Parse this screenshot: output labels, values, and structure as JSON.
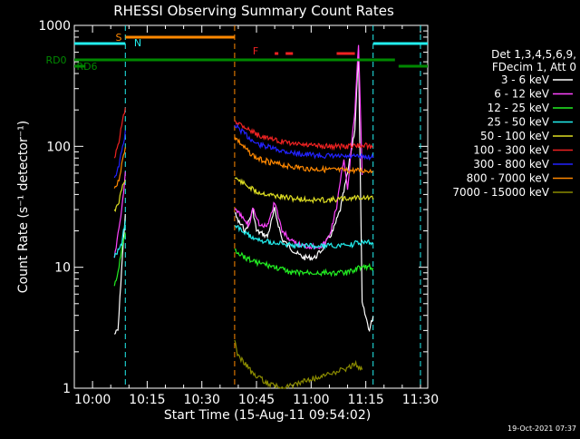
{
  "chart_data": {
    "type": "line",
    "title": "RHESSI Observing Summary Count Rates",
    "xlabel": "Start Time (15-Aug-11 09:54:02)",
    "ylabel": "Count Rate (s⁻¹ detector⁻¹)",
    "yscale": "log",
    "xlim": [
      "09:55",
      "11:32"
    ],
    "ylim": [
      1,
      1000
    ],
    "x_ticks": [
      "10:00",
      "10:15",
      "10:30",
      "10:45",
      "11:00",
      "11:15",
      "11:30"
    ],
    "y_ticks": [
      "1",
      "10",
      "100",
      "1000"
    ],
    "timestamp": "19-Oct-2021 07:37",
    "legend": {
      "position": "right",
      "header": [
        "Det 1,3,4,5,6,9,",
        "FDecim 1, Att 0"
      ],
      "entries": [
        {
          "label": "3 - 6 keV",
          "color": "#ffffff"
        },
        {
          "label": "6 - 12 keV",
          "color": "#ff44ff"
        },
        {
          "label": "12 - 25 keV",
          "color": "#22ee22"
        },
        {
          "label": "25 - 50 keV",
          "color": "#22eeee"
        },
        {
          "label": "50 - 100 keV",
          "color": "#dddd22"
        },
        {
          "label": "100 - 300 keV",
          "color": "#ee2222"
        },
        {
          "label": "300 - 800 keV",
          "color": "#2222ff"
        },
        {
          "label": "800 - 7000 keV",
          "color": "#ff8800"
        },
        {
          "label": "7000 - 15000 keV",
          "color": "#8b8b00"
        }
      ]
    },
    "state_bars": [
      {
        "label": "S",
        "color": "#ff8800",
        "segments": [
          [
            "10:09",
            "10:39"
          ]
        ]
      },
      {
        "label": "N",
        "color": "#22eeee",
        "segments": [
          [
            "09:55",
            "10:09"
          ],
          [
            "11:17",
            "11:32"
          ]
        ]
      },
      {
        "label": "F",
        "color": "#ee2222",
        "segments": [
          [
            "10:50",
            "10:51"
          ],
          [
            "10:53",
            "10:55"
          ],
          [
            "11:07",
            "11:12"
          ]
        ]
      },
      {
        "label": "RD0",
        "color": "#008800",
        "segments": [
          [
            "09:55",
            "11:23"
          ]
        ]
      },
      {
        "label": "RD6",
        "color": "#008800",
        "segments": [
          [
            "09:55",
            "09:58"
          ],
          [
            "11:24",
            "11:32"
          ]
        ]
      }
    ],
    "vlines": [
      {
        "time": "10:09",
        "color": "#22eeee"
      },
      {
        "time": "10:39",
        "color": "#ff8800"
      },
      {
        "time": "11:17",
        "color": "#22eeee"
      },
      {
        "time": "11:30",
        "color": "#22eeee"
      }
    ],
    "series": [
      {
        "name": "3 - 6 keV",
        "color": "#ffffff",
        "points": [
          [
            "10:06",
            2.8
          ],
          [
            "10:07",
            3
          ],
          [
            "10:08",
            10
          ],
          [
            "10:09",
            28
          ],
          [
            "10:39",
            28
          ],
          [
            "10:40",
            24
          ],
          [
            "10:42",
            20
          ],
          [
            "10:44",
            30
          ],
          [
            "10:45",
            20
          ],
          [
            "10:48",
            18
          ],
          [
            "10:50",
            30
          ],
          [
            "10:52",
            17
          ],
          [
            "10:56",
            13
          ],
          [
            "10:58",
            12
          ],
          [
            "11:01",
            12
          ],
          [
            "11:03",
            14
          ],
          [
            "11:06",
            20
          ],
          [
            "11:08",
            30
          ],
          [
            "11:10",
            60
          ],
          [
            "11:12",
            140
          ],
          [
            "11:13",
            600
          ],
          [
            "11:14",
            5
          ],
          [
            "11:16",
            3
          ],
          [
            "11:17",
            4
          ]
        ]
      },
      {
        "name": "6 - 12 keV",
        "color": "#ff44ff",
        "points": [
          [
            "10:06",
            12
          ],
          [
            "10:08",
            30
          ],
          [
            "10:09",
            60
          ],
          [
            "10:39",
            30
          ],
          [
            "10:41",
            26
          ],
          [
            "10:43",
            22
          ],
          [
            "10:44",
            32
          ],
          [
            "10:46",
            22
          ],
          [
            "10:48",
            22
          ],
          [
            "10:50",
            35
          ],
          [
            "10:52",
            20
          ],
          [
            "10:55",
            16
          ],
          [
            "10:58",
            15
          ],
          [
            "11:00",
            15
          ],
          [
            "11:03",
            15
          ],
          [
            "11:05",
            18
          ],
          [
            "11:07",
            32
          ],
          [
            "11:09",
            80
          ],
          [
            "11:10",
            45
          ],
          [
            "11:12",
            200
          ],
          [
            "11:13",
            700
          ],
          [
            "11:14",
            60
          ]
        ]
      },
      {
        "name": "12 - 25 keV",
        "color": "#22ee22",
        "points": [
          [
            "10:06",
            7
          ],
          [
            "10:07",
            9
          ],
          [
            "10:08",
            14
          ],
          [
            "10:09",
            20
          ],
          [
            "10:39",
            14
          ],
          [
            "10:42",
            12
          ],
          [
            "10:45",
            11
          ],
          [
            "10:50",
            10
          ],
          [
            "10:55",
            9
          ],
          [
            "11:00",
            9
          ],
          [
            "11:05",
            9
          ],
          [
            "11:10",
            9
          ],
          [
            "11:13",
            10
          ],
          [
            "11:17",
            10
          ]
        ]
      },
      {
        "name": "25 - 50 keV",
        "color": "#22eeee",
        "points": [
          [
            "10:06",
            12
          ],
          [
            "10:08",
            16
          ],
          [
            "10:09",
            24
          ],
          [
            "10:39",
            22
          ],
          [
            "10:42",
            19
          ],
          [
            "10:45",
            17
          ],
          [
            "10:50",
            16
          ],
          [
            "10:55",
            15
          ],
          [
            "11:00",
            15
          ],
          [
            "11:05",
            15
          ],
          [
            "11:10",
            15
          ],
          [
            "11:13",
            16
          ],
          [
            "11:17",
            16
          ]
        ]
      },
      {
        "name": "50 - 100 keV",
        "color": "#dddd22",
        "points": [
          [
            "10:06",
            30
          ],
          [
            "10:07",
            32
          ],
          [
            "10:08",
            45
          ],
          [
            "10:09",
            55
          ],
          [
            "10:39",
            55
          ],
          [
            "10:42",
            48
          ],
          [
            "10:45",
            42
          ],
          [
            "10:50",
            39
          ],
          [
            "10:55",
            37
          ],
          [
            "11:00",
            36
          ],
          [
            "11:05",
            36
          ],
          [
            "11:10",
            37
          ],
          [
            "11:13",
            38
          ],
          [
            "11:17",
            37
          ]
        ]
      },
      {
        "name": "100 - 300 keV",
        "color": "#ee2222",
        "points": [
          [
            "10:06",
            80
          ],
          [
            "10:07",
            100
          ],
          [
            "10:08",
            150
          ],
          [
            "10:09",
            210
          ],
          [
            "10:39",
            165
          ],
          [
            "10:42",
            145
          ],
          [
            "10:45",
            125
          ],
          [
            "10:50",
            112
          ],
          [
            "10:55",
            105
          ],
          [
            "11:00",
            102
          ],
          [
            "11:05",
            100
          ],
          [
            "11:10",
            100
          ],
          [
            "11:13",
            102
          ],
          [
            "11:17",
            100
          ]
        ]
      },
      {
        "name": "300 - 800 keV",
        "color": "#2222ff",
        "points": [
          [
            "10:06",
            55
          ],
          [
            "10:07",
            65
          ],
          [
            "10:08",
            90
          ],
          [
            "10:09",
            130
          ],
          [
            "10:39",
            150
          ],
          [
            "10:42",
            125
          ],
          [
            "10:45",
            105
          ],
          [
            "10:50",
            95
          ],
          [
            "10:55",
            88
          ],
          [
            "11:00",
            85
          ],
          [
            "11:05",
            83
          ],
          [
            "11:10",
            82
          ],
          [
            "11:13",
            82
          ],
          [
            "11:17",
            82
          ]
        ]
      },
      {
        "name": "800 - 7000 keV",
        "color": "#ff8800",
        "points": [
          [
            "10:06",
            45
          ],
          [
            "10:07",
            50
          ],
          [
            "10:08",
            70
          ],
          [
            "10:09",
            100
          ],
          [
            "10:39",
            120
          ],
          [
            "10:42",
            95
          ],
          [
            "10:45",
            80
          ],
          [
            "10:50",
            72
          ],
          [
            "10:55",
            68
          ],
          [
            "11:00",
            65
          ],
          [
            "11:05",
            64
          ],
          [
            "11:10",
            63
          ],
          [
            "11:13",
            63
          ],
          [
            "11:17",
            63
          ]
        ]
      },
      {
        "name": "7000 - 15000 keV",
        "color": "#8b8b00",
        "points": [
          [
            "10:39",
            2.5
          ],
          [
            "10:40",
            1.8
          ],
          [
            "10:42",
            1.6
          ],
          [
            "10:44",
            1.3
          ],
          [
            "10:46",
            1.2
          ],
          [
            "10:48",
            1.1
          ],
          [
            "10:50",
            1.05
          ],
          [
            "10:52",
            1.0
          ],
          [
            "11:11",
            1.5
          ],
          [
            "11:12",
            1.6
          ],
          [
            "11:13",
            1.5
          ],
          [
            "11:14",
            1.4
          ]
        ]
      }
    ]
  }
}
